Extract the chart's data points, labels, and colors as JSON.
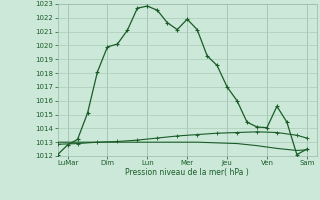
{
  "xlabel": "Pression niveau de la mer( hPa )",
  "ylim": [
    1012,
    1023
  ],
  "xlim": [
    0,
    13
  ],
  "bg_color": "#cce8d8",
  "line_color": "#1a5c28",
  "grid_color": "#aaccb8",
  "vline_color": "#99bbaa",
  "tick_labels": [
    "LuMar",
    "Dim",
    "Lun",
    "Mer",
    "Jeu",
    "Ven",
    "Sam"
  ],
  "tick_positions": [
    0.5,
    2.5,
    4.5,
    6.5,
    8.5,
    10.5,
    12.5
  ],
  "line1_x": [
    0.0,
    0.5,
    1.0,
    1.5,
    2.0,
    2.5,
    3.0,
    3.5,
    4.0,
    4.5,
    5.0,
    5.5,
    6.0,
    6.5,
    7.0,
    7.5,
    8.0,
    8.5,
    9.0,
    9.5,
    10.0,
    10.5,
    11.0,
    11.5,
    12.0,
    12.5
  ],
  "line1_y": [
    1012.1,
    1012.8,
    1013.2,
    1015.1,
    1018.1,
    1019.9,
    1020.1,
    1021.1,
    1022.7,
    1022.85,
    1022.55,
    1021.65,
    1021.15,
    1021.9,
    1021.15,
    1019.25,
    1018.55,
    1017.0,
    1016.0,
    1014.45,
    1014.1,
    1014.05,
    1015.6,
    1014.45,
    1012.1,
    1012.5
  ],
  "line2_x": [
    0.0,
    1.0,
    2.0,
    3.0,
    4.0,
    5.0,
    6.0,
    7.0,
    8.0,
    9.0,
    10.0,
    11.0,
    12.0,
    12.5
  ],
  "line2_y": [
    1012.85,
    1012.9,
    1013.0,
    1013.05,
    1013.15,
    1013.3,
    1013.45,
    1013.55,
    1013.65,
    1013.7,
    1013.75,
    1013.7,
    1013.5,
    1013.3
  ],
  "line3_x": [
    0.0,
    1.0,
    2.0,
    3.0,
    4.0,
    5.0,
    6.0,
    7.0,
    8.0,
    9.0,
    10.0,
    11.0,
    12.0,
    12.5
  ],
  "line3_y": [
    1013.0,
    1013.0,
    1013.0,
    1013.0,
    1013.0,
    1013.0,
    1013.0,
    1013.0,
    1012.95,
    1012.9,
    1012.75,
    1012.55,
    1012.4,
    1012.45
  ],
  "yticks": [
    1012,
    1013,
    1014,
    1015,
    1016,
    1017,
    1018,
    1019,
    1020,
    1021,
    1022,
    1023
  ],
  "vlines": [
    0.5,
    2.5,
    4.5,
    6.5,
    8.5,
    10.5,
    12.5
  ]
}
